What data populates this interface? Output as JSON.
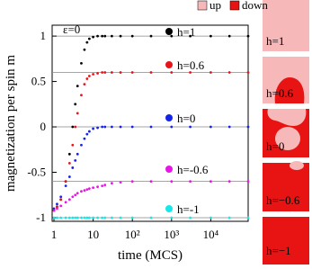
{
  "chart_data": {
    "type": "scatter",
    "x_label": "time (MCS)",
    "y_label": "magnetization per spin m",
    "annotation": "ε=0",
    "log_x": true,
    "xlim": [
      0.9,
      90000
    ],
    "ylim": [
      -1.04,
      1.12
    ],
    "xticks": [
      1,
      10,
      {
        "value": 100,
        "label": "10²"
      },
      {
        "value": 1000,
        "label": "10³"
      },
      {
        "value": 10000,
        "label": "10⁴"
      }
    ],
    "yticks": [
      -1,
      -0.5,
      0,
      0.5,
      1
    ],
    "reference_lines": [
      1,
      0.6,
      0,
      -0.6,
      -1
    ],
    "x": [
      1,
      1.2,
      1.5,
      2,
      2.5,
      3,
      3.5,
      4,
      5,
      6,
      7,
      8,
      10,
      13,
      17,
      20,
      30,
      50,
      100,
      300,
      1000,
      3000,
      10000,
      30000,
      90000
    ],
    "series": [
      {
        "name": "h=1",
        "color": "#000000",
        "values": [
          -0.92,
          -0.88,
          -0.8,
          -0.6,
          -0.3,
          0,
          0.25,
          0.45,
          0.7,
          0.85,
          0.93,
          0.97,
          0.99,
          1,
          1,
          1,
          1,
          1,
          1,
          1,
          1,
          1,
          1,
          1,
          1
        ]
      },
      {
        "name": "h=0.6",
        "color": "#e8141c",
        "values": [
          -0.92,
          -0.88,
          -0.8,
          -0.6,
          -0.4,
          -0.2,
          0,
          0.15,
          0.35,
          0.47,
          0.53,
          0.56,
          0.58,
          0.59,
          0.6,
          0.6,
          0.6,
          0.6,
          0.6,
          0.6,
          0.6,
          0.6,
          0.6,
          0.6,
          0.6
        ]
      },
      {
        "name": "h=0",
        "color": "#1424e8",
        "values": [
          -0.9,
          -0.85,
          -0.77,
          -0.65,
          -0.55,
          -0.45,
          -0.37,
          -0.3,
          -0.2,
          -0.13,
          -0.08,
          -0.05,
          -0.02,
          -0.01,
          0,
          0,
          0,
          0,
          0,
          0,
          0,
          0,
          0,
          0,
          0
        ]
      },
      {
        "name": "h=-0.6",
        "color": "#e814e8",
        "values": [
          -0.92,
          -0.9,
          -0.87,
          -0.83,
          -0.8,
          -0.77,
          -0.75,
          -0.73,
          -0.71,
          -0.7,
          -0.69,
          -0.68,
          -0.67,
          -0.66,
          -0.65,
          -0.64,
          -0.62,
          -0.61,
          -0.6,
          -0.6,
          -0.6,
          -0.6,
          -0.6,
          -0.6,
          -0.6
        ]
      },
      {
        "name": "h=-1",
        "color": "#14e8e8",
        "values": [
          -1,
          -1,
          -1,
          -1,
          -1,
          -1,
          -1,
          -1,
          -1,
          -1,
          -1,
          -1,
          -1,
          -1,
          -1,
          -1,
          -1,
          -1,
          -1,
          -1,
          -1,
          -1,
          -1,
          -1,
          -1
        ]
      }
    ],
    "state_legend": [
      {
        "name": "up",
        "color": "#f6b8b8"
      },
      {
        "name": "down",
        "color": "#e81414"
      }
    ]
  },
  "snapshots": [
    "h=1",
    "h=0.6",
    "h=0",
    "h=−0.6",
    "h=−1"
  ]
}
